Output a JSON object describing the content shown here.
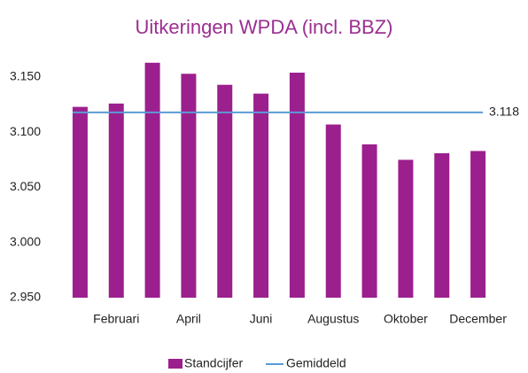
{
  "chart_data": {
    "type": "bar",
    "title": "Uitkeringen WPDA (incl. BBZ)",
    "categories": [
      null,
      "Februari",
      null,
      "April",
      null,
      "Juni",
      null,
      "Augustus",
      null,
      "Oktober",
      null,
      "December"
    ],
    "series": [
      {
        "name": "Standcijfer",
        "color": "#9c1f8e",
        "values": [
          3123,
          3126,
          3163,
          3153,
          3143,
          3135,
          3154,
          3107,
          3089,
          3075,
          3081,
          3083
        ]
      },
      {
        "name": "Gemiddeld",
        "type": "line",
        "color": "#5b9bd5",
        "values": [
          3118,
          3118,
          3118,
          3118,
          3118,
          3118,
          3118,
          3118,
          3118,
          3118,
          3118,
          3118
        ],
        "value_labels": [
          null,
          null,
          null,
          null,
          null,
          null,
          null,
          null,
          null,
          null,
          null,
          "3.118"
        ]
      }
    ],
    "ylim": [
      2950,
      3170
    ],
    "yticks": [
      {
        "value": 2950,
        "label": "2.950"
      },
      {
        "value": 3000,
        "label": "3.000"
      },
      {
        "value": 3050,
        "label": "3.050"
      },
      {
        "value": 3100,
        "label": "3.100"
      },
      {
        "value": 3150,
        "label": "3.150"
      }
    ],
    "grid": false,
    "legend": "bottom"
  }
}
